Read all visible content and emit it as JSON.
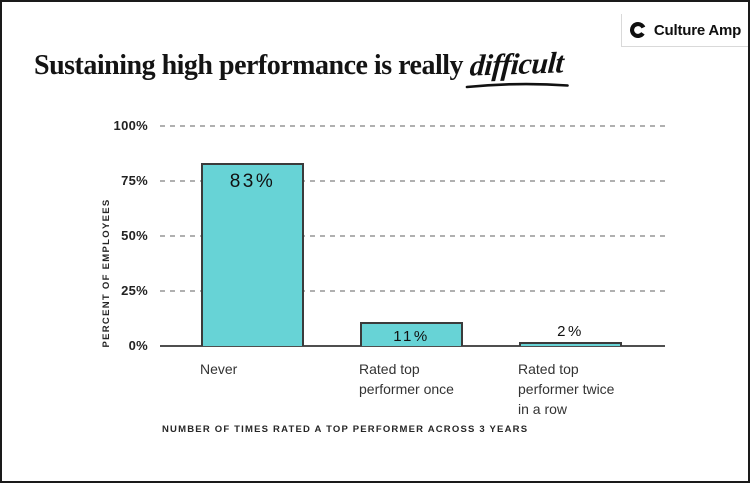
{
  "header": {
    "title_plain": "Sustaining high performance is really",
    "title_emphasis": "difficult",
    "brand": "Culture Amp"
  },
  "chart_data": {
    "type": "bar",
    "title": "Sustaining high performance is really difficult",
    "categories": [
      "Never",
      "Rated top performer once",
      "Rated top performer twice in a row"
    ],
    "categories_lines": [
      [
        "Never"
      ],
      [
        "Rated top",
        "performer once"
      ],
      [
        "Rated top",
        "performer twice",
        "in a row"
      ]
    ],
    "values": [
      83,
      11,
      2
    ],
    "value_labels": [
      "83%",
      "11%",
      "2%"
    ],
    "xlabel": "NUMBER OF TIMES RATED A TOP PERFORMER ACROSS 3 YEARS",
    "ylabel": "PERCENT OF EMPLOYEES",
    "ylim": [
      0,
      100
    ],
    "yticks": [
      {
        "label": "100%",
        "value": 100
      },
      {
        "label": "75%",
        "value": 75
      },
      {
        "label": "50%",
        "value": 50
      },
      {
        "label": "25%",
        "value": 25
      },
      {
        "label": "0%",
        "value": 0
      }
    ],
    "grid": "horizontal-dashed",
    "legend": "none",
    "colors": {
      "bar_fill": "#67d3d6",
      "bar_border": "#3b3b3b",
      "gridline": "#b0b0b0",
      "axis": "#4f4f4f",
      "title_text": "#141414",
      "label_text": "#262626"
    }
  }
}
